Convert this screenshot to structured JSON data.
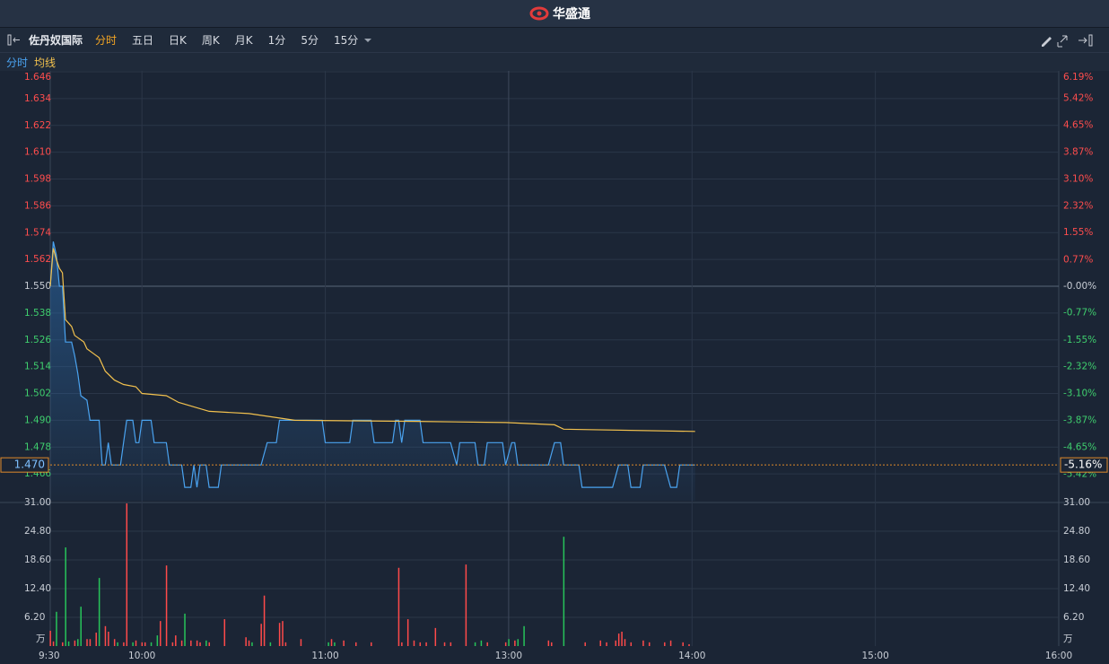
{
  "header": {
    "logo": "华盛通"
  },
  "toolbar": {
    "symbol": "佐丹奴国际",
    "tabs": [
      "分时",
      "五日",
      "日K",
      "周K",
      "月K",
      "1分",
      "5分",
      "15分"
    ]
  },
  "chart_data": [
    {
      "type": "line",
      "ylim": [
        1.454,
        1.646
      ],
      "yticks": [
        1.646,
        1.634,
        1.622,
        {
          "value": 1.61,
          "label": "1.610"
        },
        1.598,
        1.586,
        1.574,
        1.562,
        {
          "value": 1.55,
          "label": "1.550"
        },
        1.538,
        1.526,
        1.514,
        1.502,
        {
          "value": 1.49,
          "label": "1.490"
        },
        1.478,
        1.466
      ],
      "y2lim": [
        -6.19,
        6.19
      ],
      "y2ticks": [
        {
          "value": 6.19,
          "label": "6.19%"
        },
        {
          "value": 5.42,
          "label": "5.42%"
        },
        {
          "value": 4.65,
          "label": "4.65%"
        },
        {
          "value": 3.87,
          "label": "3.87%"
        },
        {
          "value": 3.1,
          "label": "3.10%"
        },
        {
          "value": 2.32,
          "label": "2.32%"
        },
        {
          "value": 1.55,
          "label": "1.55%"
        },
        {
          "value": 0.77,
          "label": "0.77%"
        },
        {
          "value": 0,
          "label": "-0.00%"
        },
        {
          "value": -0.77,
          "label": "-0.77%"
        },
        {
          "value": -1.55,
          "label": "-1.55%"
        },
        {
          "value": -2.32,
          "label": "-2.32%"
        },
        {
          "value": -3.1,
          "label": "-3.10%"
        },
        {
          "value": -3.87,
          "label": "-3.87%"
        },
        {
          "value": -4.65,
          "label": "-4.65%"
        },
        {
          "value": -5.42,
          "label": "-5.42%"
        }
      ],
      "grid": true,
      "last_price": {
        "value": 1.47,
        "label": "1.470"
      },
      "last_change": {
        "value": -5.16,
        "label": "-5.16%"
      },
      "series": [
        {
          "name": "分时",
          "color": "#4aa3f0",
          "x": [
            "9:30",
            "9:31",
            "9:32",
            "9:33",
            "9:34",
            "9:35",
            "9:37",
            "9:38",
            "9:39",
            "9:40",
            "9:42",
            "9:43",
            "9:46",
            "9:47",
            "9:48",
            "9:49",
            "9:50",
            "9:53",
            "9:54",
            "9:55",
            "9:57",
            "9:58",
            "9:59",
            "10:00",
            "10:03",
            "10:04",
            "10:08",
            "10:09",
            "10:13",
            "10:14",
            "10:16",
            "10:17",
            "10:18",
            "10:19",
            "10:21",
            "10:22",
            "10:25",
            "10:26",
            "10:39",
            "10:41",
            "10:44",
            "10:45",
            "10:59",
            "11:00",
            "11:08",
            "11:09",
            "11:15",
            "11:16",
            "11:22",
            "11:23",
            "11:24",
            "11:25",
            "11:26",
            "11:31",
            "11:32",
            "11:41",
            "11:43",
            "11:44",
            "11:49",
            "11:50",
            "11:52",
            "11:53",
            "11:58",
            "11:59",
            "13:01",
            "13:02",
            "13:03",
            "13:13",
            "13:15",
            "13:17",
            "13:18",
            "13:23",
            "13:24",
            "13:34",
            "13:36",
            "13:39",
            "13:40",
            "13:43",
            "13:44",
            "13:51",
            "13:53",
            "13:55",
            "13:56",
            "14:01"
          ],
          "values": [
            1.55,
            1.57,
            1.564,
            1.55,
            1.55,
            1.525,
            1.525,
            1.519,
            1.511,
            1.501,
            1.499,
            1.49,
            1.49,
            1.47,
            1.47,
            1.48,
            1.47,
            1.47,
            1.48,
            1.49,
            1.49,
            1.48,
            1.48,
            1.49,
            1.49,
            1.48,
            1.48,
            1.47,
            1.47,
            1.46,
            1.46,
            1.47,
            1.46,
            1.47,
            1.47,
            1.46,
            1.46,
            1.47,
            1.47,
            1.48,
            1.48,
            1.49,
            1.49,
            1.48,
            1.48,
            1.49,
            1.49,
            1.48,
            1.48,
            1.49,
            1.49,
            1.48,
            1.49,
            1.49,
            1.48,
            1.48,
            1.47,
            1.48,
            1.48,
            1.47,
            1.47,
            1.48,
            1.48,
            1.47,
            1.48,
            1.48,
            1.47,
            1.47,
            1.48,
            1.48,
            1.47,
            1.47,
            1.46,
            1.46,
            1.47,
            1.47,
            1.46,
            1.46,
            1.47,
            1.47,
            1.46,
            1.46,
            1.47,
            1.47
          ]
        },
        {
          "name": "均线",
          "color": "#f2c14e",
          "x": [
            "9:30",
            "9:31",
            "9:32",
            "9:33",
            "9:34",
            "9:35",
            "9:37",
            "9:38",
            "9:41",
            "9:42",
            "9:44",
            "9:46",
            "9:48",
            "9:51",
            "9:54",
            "9:58",
            "10:00",
            "10:08",
            "10:12",
            "10:17",
            "10:22",
            "10:35",
            "10:45",
            "10:50",
            "11:30",
            "11:59",
            "13:15",
            "13:18",
            "14:01"
          ],
          "values": [
            1.55,
            1.567,
            1.562,
            1.558,
            1.556,
            1.535,
            1.532,
            1.528,
            1.525,
            1.522,
            1.52,
            1.518,
            1.512,
            1.508,
            1.506,
            1.505,
            1.502,
            1.501,
            1.498,
            1.496,
            1.494,
            1.493,
            1.491,
            1.49,
            1.4895,
            1.489,
            1.488,
            1.486,
            1.485
          ]
        }
      ]
    },
    {
      "type": "bar",
      "xlim": [
        "9:30",
        "16:00"
      ],
      "breaks": [
        [
          "12:00",
          "13:00"
        ]
      ],
      "xticks": [
        "9:30",
        "10:00",
        "11:00",
        "13:00",
        "14:00",
        "15:00",
        "16:00"
      ],
      "ylim": [
        0,
        31
      ],
      "yticks": [
        {
          "value": 31,
          "label": "31.00"
        },
        {
          "value": 24.8,
          "label": "24.80"
        },
        {
          "value": 18.6,
          "label": "18.60"
        },
        {
          "value": 12.4,
          "label": "12.40"
        },
        {
          "value": 6.2,
          "label": "6.20"
        }
      ],
      "unit_label": "万",
      "x": [
        "9:30",
        "9:31",
        "9:32",
        "9:34",
        "9:35",
        "9:36",
        "9:38",
        "9:39",
        "9:40",
        "9:42",
        "9:43",
        "9:45",
        "9:46",
        "9:48",
        "9:49",
        "9:51",
        "9:52",
        "9:54",
        "9:55",
        "9:57",
        "9:58",
        "10:00",
        "10:01",
        "10:03",
        "10:05",
        "10:06",
        "10:08",
        "10:10",
        "10:11",
        "10:13",
        "10:14",
        "10:16",
        "10:18",
        "10:19",
        "10:21",
        "10:22",
        "10:27",
        "10:34",
        "10:35",
        "10:36",
        "10:39",
        "10:40",
        "10:42",
        "10:45",
        "10:46",
        "10:47",
        "10:52",
        "11:01",
        "11:02",
        "11:03",
        "11:06",
        "11:10",
        "11:15",
        "11:24",
        "11:25",
        "11:27",
        "11:29",
        "11:31",
        "11:33",
        "11:36",
        "11:39",
        "11:41",
        "11:46",
        "11:49",
        "11:51",
        "11:53",
        "11:59",
        "13:00",
        "13:02",
        "13:03",
        "13:05",
        "13:13",
        "13:14",
        "13:18",
        "13:25",
        "13:30",
        "13:32",
        "13:35",
        "13:36",
        "13:37",
        "13:38",
        "13:40",
        "13:44",
        "13:46",
        "13:51",
        "13:53",
        "13:57",
        "13:59"
      ],
      "values": [
        3.3,
        1.0,
        7.4,
        0.8,
        21.3,
        1.0,
        1.2,
        1.5,
        8.5,
        1.5,
        1.5,
        2.9,
        14.7,
        4.3,
        3.1,
        1.5,
        0.8,
        0.8,
        30.8,
        0.8,
        1.2,
        0.8,
        0.8,
        0.8,
        2.3,
        5.4,
        17.4,
        0.8,
        2.3,
        1.2,
        7.0,
        1.2,
        1.2,
        0.8,
        1.2,
        0.8,
        5.8,
        1.9,
        1.2,
        0.8,
        4.8,
        10.9,
        0.8,
        5.0,
        5.4,
        0.8,
        1.5,
        0.8,
        1.5,
        0.8,
        1.2,
        0.8,
        0.8,
        16.9,
        0.8,
        5.8,
        1.2,
        0.8,
        0.8,
        3.9,
        0.8,
        0.8,
        17.6,
        0.8,
        1.2,
        0.8,
        0.8,
        1.5,
        1.2,
        1.5,
        4.3,
        1.2,
        0.8,
        23.6,
        0.8,
        1.2,
        0.8,
        1.2,
        2.7,
        3.1,
        1.5,
        0.8,
        1.2,
        0.8,
        0.8,
        1.2,
        0.8,
        0.4
      ],
      "colors": [
        "#ff4a4a",
        "#ff4a4a",
        "#27c45a",
        "#ff4a4a",
        "#27c45a",
        "#27c45a",
        "#ff4a4a",
        "#27c45a",
        "#27c45a",
        "#ff4a4a",
        "#ff4a4a",
        "#ff4a4a",
        "#27c45a",
        "#ff4a4a",
        "#ff4a4a",
        "#ff4a4a",
        "#27c45a",
        "#ff4a4a",
        "#ff4a4a",
        "#27c45a",
        "#ff4a4a",
        "#ff4a4a",
        "#ff4a4a",
        "#27c45a",
        "#27c45a",
        "#ff4a4a",
        "#ff4a4a",
        "#ff4a4a",
        "#ff4a4a",
        "#ff4a4a",
        "#27c45a",
        "#ff4a4a",
        "#ff4a4a",
        "#ff4a4a",
        "#27c45a",
        "#ff4a4a",
        "#ff4a4a",
        "#ff4a4a",
        "#ff4a4a",
        "#27c45a",
        "#ff4a4a",
        "#ff4a4a",
        "#27c45a",
        "#ff4a4a",
        "#ff4a4a",
        "#ff4a4a",
        "#ff4a4a",
        "#27c45a",
        "#ff4a4a",
        "#27c45a",
        "#ff4a4a",
        "#ff4a4a",
        "#ff4a4a",
        "#ff4a4a",
        "#ff4a4a",
        "#ff4a4a",
        "#ff4a4a",
        "#ff4a4a",
        "#ff4a4a",
        "#ff4a4a",
        "#ff4a4a",
        "#ff4a4a",
        "#ff4a4a",
        "#27c45a",
        "#27c45a",
        "#ff4a4a",
        "#ff4a4a",
        "#27c45a",
        "#ff4a4a",
        "#27c45a",
        "#27c45a",
        "#ff4a4a",
        "#ff4a4a",
        "#27c45a",
        "#ff4a4a",
        "#ff4a4a",
        "#ff4a4a",
        "#ff4a4a",
        "#ff4a4a",
        "#ff4a4a",
        "#ff4a4a",
        "#ff4a4a",
        "#ff4a4a",
        "#ff4a4a",
        "#ff4a4a",
        "#ff4a4a",
        "#ff4a4a",
        "#ff4a4a"
      ]
    }
  ]
}
